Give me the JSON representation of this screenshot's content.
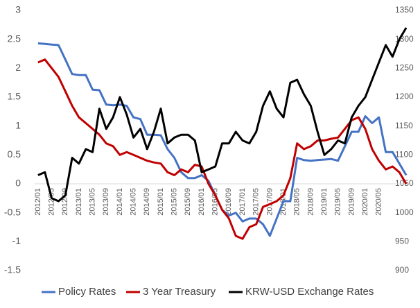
{
  "chart_data": {
    "type": "line",
    "categories": [
      "2012/01",
      null,
      "2012/05",
      null,
      "2012/09",
      null,
      "2013/01",
      null,
      "2013/05",
      null,
      "2013/09",
      null,
      "2014/01",
      null,
      "2014/05",
      null,
      "2014/09",
      null,
      "2015/01",
      null,
      "2015/05",
      null,
      "2015/09",
      null,
      "2016/01",
      null,
      "2016/05",
      null,
      "2016/09",
      null,
      "2017/01",
      null,
      "2017/05",
      null,
      "2017/09",
      null,
      "2018/01",
      null,
      "2018/05",
      null,
      "2018/09",
      null,
      "2019/01",
      null,
      "2019/05",
      null,
      "2019/09",
      null,
      "2020/01",
      null,
      "2020/05",
      null,
      null,
      null,
      null
    ],
    "series": [
      {
        "name": "Policy Rates",
        "color": "#4472c4",
        "values": [
          2.43,
          2.42,
          2.41,
          2.4,
          2.15,
          1.9,
          1.88,
          1.88,
          1.63,
          1.62,
          1.37,
          1.36,
          1.37,
          1.35,
          1.15,
          1.12,
          0.85,
          0.85,
          0.84,
          0.6,
          0.45,
          0.2,
          0.1,
          0.1,
          0.15,
          0.05,
          -0.2,
          -0.45,
          -0.55,
          -0.5,
          -0.65,
          -0.6,
          -0.6,
          -0.7,
          -0.9,
          -0.6,
          -0.3,
          -0.3,
          0.45,
          0.41,
          0.4,
          0.41,
          0.42,
          0.43,
          0.4,
          0.65,
          0.9,
          0.9,
          1.17,
          1.05,
          1.15,
          0.55,
          0.55,
          0.35,
          0.15
        ]
      },
      {
        "name": "3 Year Treasury",
        "color": "#c00000",
        "values": [
          2.1,
          2.15,
          2.0,
          1.85,
          1.6,
          1.35,
          1.15,
          1.05,
          0.95,
          0.85,
          0.7,
          0.65,
          0.5,
          0.55,
          0.5,
          0.45,
          0.4,
          0.37,
          0.35,
          0.2,
          0.15,
          0.25,
          0.2,
          0.33,
          0.3,
          0.0,
          -0.2,
          -0.45,
          -0.6,
          -0.9,
          -0.95,
          -0.75,
          -0.7,
          -0.4,
          -0.35,
          -0.3,
          -0.2,
          0.1,
          0.7,
          0.6,
          0.65,
          0.75,
          0.75,
          0.78,
          0.8,
          0.95,
          1.1,
          1.15,
          0.95,
          0.6,
          0.4,
          0.25,
          0.3,
          0.2,
          0.0
        ]
      },
      {
        "name": "KRW-USD Exchange Rates",
        "color": "#000000",
        "axis": "y2",
        "values": [
          1065,
          1070,
          1025,
          1020,
          1030,
          1095,
          1085,
          1110,
          1105,
          1180,
          1145,
          1165,
          1200,
          1170,
          1130,
          1145,
          1110,
          1140,
          1180,
          1120,
          1130,
          1135,
          1135,
          1125,
          1070,
          1075,
          1080,
          1120,
          1120,
          1140,
          1125,
          1120,
          1140,
          1185,
          1210,
          1180,
          1165,
          1225,
          1230,
          1205,
          1185,
          1140,
          1100,
          1110,
          1125,
          1120,
          1165,
          1185,
          1200,
          1230,
          1260,
          1290,
          1270,
          1300,
          1320
        ]
      }
    ],
    "ylim": [
      -1.5,
      3
    ],
    "yticks": [
      -1.5,
      -1,
      -0.5,
      0,
      0.5,
      1,
      1.5,
      2,
      2.5,
      3
    ],
    "y2lim": [
      900,
      1350
    ],
    "y2ticks": [
      900,
      950,
      1000,
      1050,
      1100,
      1150,
      1200,
      1250,
      1300,
      1350
    ],
    "legend": "bottom"
  }
}
